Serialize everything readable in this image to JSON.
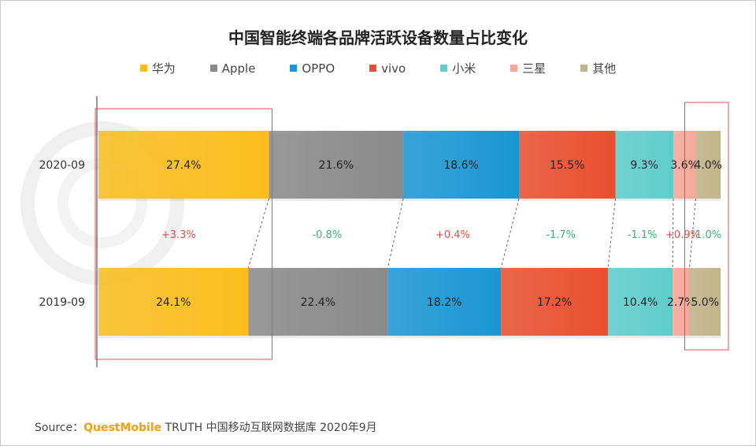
{
  "chart_data": {
    "type": "bar",
    "stacked": "100%",
    "orientation": "horizontal",
    "title": "中国智能终端各品牌活跃设备数量占比变化",
    "categories": [
      "2020-09",
      "2019-09"
    ],
    "series": [
      {
        "name": "华为",
        "color": "#fcbe1e",
        "values": [
          27.4,
          24.1
        ],
        "labels": [
          "27.4%",
          "24.1%"
        ],
        "change": "+3.3%",
        "change_color": "#e05050"
      },
      {
        "name": "Apple",
        "color": "#8a8a8a",
        "values": [
          21.6,
          22.4
        ],
        "labels": [
          "21.6%",
          "22.4%"
        ],
        "change": "-0.8%",
        "change_color": "#3cb371"
      },
      {
        "name": "OPPO",
        "color": "#1a96d4",
        "values": [
          18.6,
          18.2
        ],
        "labels": [
          "18.6%",
          "18.2%"
        ],
        "change": "+0.4%",
        "change_color": "#e05050"
      },
      {
        "name": "vivo",
        "color": "#e94f2e",
        "values": [
          15.5,
          17.2
        ],
        "labels": [
          "15.5%",
          "17.2%"
        ],
        "change": "-1.7%",
        "change_color": "#3cb371"
      },
      {
        "name": "小米",
        "color": "#5fcdcd",
        "values": [
          9.3,
          10.4
        ],
        "labels": [
          "9.3%",
          "10.4%"
        ],
        "change": "-1.1%",
        "change_color": "#3cb371"
      },
      {
        "name": "三星",
        "color": "#f7a899",
        "values": [
          3.6,
          2.7
        ],
        "labels": [
          "3.6%",
          "2.7%"
        ],
        "change": "+0.9%",
        "change_color": "#e05050"
      },
      {
        "name": "其他",
        "color": "#c2b48a",
        "values": [
          4.0,
          5.0
        ],
        "labels": [
          "4.0%",
          "5.0%"
        ],
        "change": "-1.0%",
        "change_color": "#3cb371"
      }
    ],
    "legend_position": "top",
    "highlight_boxes": [
      "华为",
      "其他"
    ]
  },
  "source": {
    "prefix": "Source：",
    "brand": "QuestMobile",
    "rest": " TRUTH 中国移动互联网数据库 2020年9月"
  }
}
